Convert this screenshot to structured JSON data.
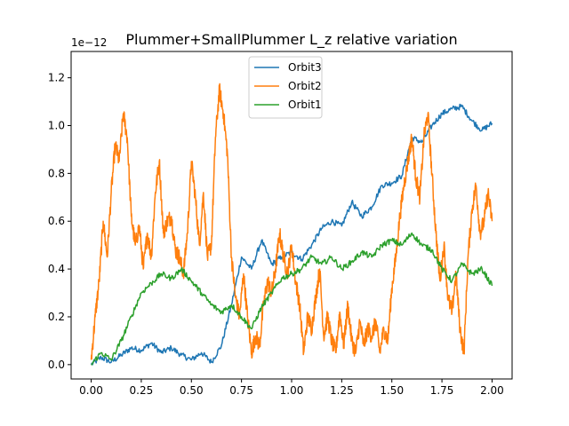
{
  "chart_data": {
    "type": "line",
    "title": "Plummer+SmallPlummer L_z relative variation",
    "xlabel": "",
    "ylabel": "",
    "offset_text": "1e−12",
    "xlim": [
      -0.1,
      2.1
    ],
    "ylim": [
      -0.06,
      1.31
    ],
    "xticks": [
      0.0,
      0.25,
      0.5,
      0.75,
      1.0,
      1.25,
      1.5,
      1.75,
      2.0
    ],
    "xtick_labels": [
      "0.00",
      "0.25",
      "0.50",
      "0.75",
      "1.00",
      "1.25",
      "1.50",
      "1.75",
      "2.00"
    ],
    "yticks": [
      0.0,
      0.2,
      0.4,
      0.6,
      0.8,
      1.0,
      1.2
    ],
    "ytick_labels": [
      "0.0",
      "0.2",
      "0.4",
      "0.6",
      "0.8",
      "1.0",
      "1.2"
    ],
    "grid": false,
    "legend_position": "top-center",
    "series": [
      {
        "name": "Orbit3",
        "color": "#1f77b4",
        "x": [
          0.0,
          0.05,
          0.1,
          0.15,
          0.2,
          0.25,
          0.3,
          0.35,
          0.4,
          0.45,
          0.5,
          0.55,
          0.6,
          0.65,
          0.7,
          0.75,
          0.8,
          0.85,
          0.9,
          0.95,
          1.0,
          1.05,
          1.1,
          1.15,
          1.2,
          1.25,
          1.3,
          1.35,
          1.4,
          1.45,
          1.5,
          1.55,
          1.6,
          1.65,
          1.7,
          1.75,
          1.8,
          1.85,
          1.9,
          1.95,
          2.0
        ],
        "y": [
          0.0,
          0.03,
          0.01,
          0.04,
          0.07,
          0.06,
          0.09,
          0.05,
          0.07,
          0.04,
          0.02,
          0.05,
          0.01,
          0.08,
          0.25,
          0.45,
          0.4,
          0.52,
          0.42,
          0.45,
          0.47,
          0.44,
          0.5,
          0.57,
          0.6,
          0.58,
          0.68,
          0.62,
          0.66,
          0.75,
          0.76,
          0.79,
          0.95,
          0.93,
          1.0,
          1.05,
          1.07,
          1.08,
          1.02,
          0.98,
          1.01
        ]
      },
      {
        "name": "Orbit2",
        "color": "#ff7f0e",
        "x": [
          0.0,
          0.02,
          0.04,
          0.06,
          0.08,
          0.1,
          0.12,
          0.14,
          0.16,
          0.18,
          0.2,
          0.22,
          0.24,
          0.26,
          0.28,
          0.3,
          0.32,
          0.34,
          0.36,
          0.38,
          0.4,
          0.42,
          0.44,
          0.46,
          0.48,
          0.5,
          0.52,
          0.54,
          0.56,
          0.58,
          0.6,
          0.62,
          0.64,
          0.66,
          0.68,
          0.7,
          0.72,
          0.74,
          0.76,
          0.78,
          0.8,
          0.82,
          0.84,
          0.86,
          0.88,
          0.9,
          0.92,
          0.94,
          0.96,
          0.98,
          1.0,
          1.02,
          1.04,
          1.06,
          1.08,
          1.1,
          1.12,
          1.14,
          1.16,
          1.18,
          1.2,
          1.22,
          1.24,
          1.26,
          1.28,
          1.3,
          1.32,
          1.34,
          1.36,
          1.38,
          1.4,
          1.42,
          1.44,
          1.46,
          1.48,
          1.5,
          1.52,
          1.54,
          1.56,
          1.58,
          1.6,
          1.62,
          1.64,
          1.66,
          1.68,
          1.7,
          1.72,
          1.74,
          1.76,
          1.78,
          1.8,
          1.82,
          1.84,
          1.86,
          1.88,
          1.9,
          1.92,
          1.94,
          1.96,
          1.98,
          2.0
        ],
        "y": [
          0.02,
          0.2,
          0.35,
          0.6,
          0.45,
          0.72,
          0.92,
          0.85,
          1.05,
          0.95,
          0.62,
          0.5,
          0.58,
          0.4,
          0.55,
          0.45,
          0.72,
          0.85,
          0.55,
          0.6,
          0.62,
          0.48,
          0.45,
          0.38,
          0.55,
          0.85,
          0.7,
          0.5,
          0.72,
          0.45,
          0.5,
          0.95,
          1.15,
          1.05,
          0.88,
          0.45,
          0.28,
          0.2,
          0.38,
          0.2,
          0.05,
          0.12,
          0.08,
          0.25,
          0.35,
          0.3,
          0.4,
          0.55,
          0.45,
          0.38,
          0.5,
          0.35,
          0.25,
          0.05,
          0.2,
          0.15,
          0.28,
          0.4,
          0.12,
          0.2,
          0.1,
          0.05,
          0.22,
          0.08,
          0.25,
          0.1,
          0.05,
          0.18,
          0.08,
          0.15,
          0.12,
          0.18,
          0.05,
          0.15,
          0.1,
          0.32,
          0.45,
          0.62,
          0.75,
          0.85,
          0.95,
          0.78,
          0.7,
          0.95,
          1.05,
          0.8,
          0.55,
          0.35,
          0.5,
          0.28,
          0.22,
          0.38,
          0.15,
          0.05,
          0.45,
          0.65,
          0.75,
          0.55,
          0.6,
          0.72,
          0.6
        ]
      },
      {
        "name": "Orbit1",
        "color": "#2ca02c",
        "x": [
          0.0,
          0.05,
          0.1,
          0.15,
          0.2,
          0.25,
          0.3,
          0.35,
          0.4,
          0.45,
          0.5,
          0.55,
          0.6,
          0.65,
          0.7,
          0.75,
          0.8,
          0.85,
          0.9,
          0.95,
          1.0,
          1.05,
          1.1,
          1.15,
          1.2,
          1.25,
          1.3,
          1.35,
          1.4,
          1.45,
          1.5,
          1.55,
          1.6,
          1.65,
          1.7,
          1.75,
          1.8,
          1.85,
          1.9,
          1.95,
          2.0
        ],
        "y": [
          0.0,
          0.05,
          0.02,
          0.1,
          0.2,
          0.3,
          0.34,
          0.38,
          0.36,
          0.4,
          0.35,
          0.3,
          0.25,
          0.22,
          0.25,
          0.2,
          0.15,
          0.24,
          0.3,
          0.36,
          0.38,
          0.4,
          0.45,
          0.42,
          0.45,
          0.4,
          0.43,
          0.47,
          0.45,
          0.5,
          0.52,
          0.5,
          0.55,
          0.5,
          0.48,
          0.4,
          0.35,
          0.42,
          0.38,
          0.4,
          0.33
        ]
      }
    ]
  }
}
